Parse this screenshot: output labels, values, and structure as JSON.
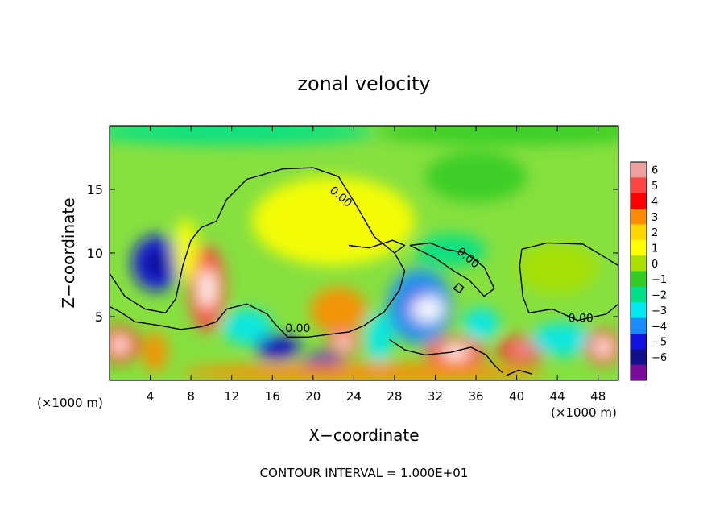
{
  "chart_data": {
    "type": "heatmap",
    "title": "zonal velocity",
    "xlabel": "X−coordinate",
    "ylabel": "Z−coordinate",
    "x_unit_left": "(×1000 m)",
    "x_unit_right": "(×1000 m)",
    "footer": "CONTOUR INTERVAL = 1.000E+01",
    "xlim": [
      0,
      50
    ],
    "ylim": [
      0,
      20
    ],
    "x_ticks": [
      4,
      8,
      12,
      16,
      20,
      24,
      28,
      32,
      36,
      40,
      44,
      48
    ],
    "y_ticks": [
      5,
      10,
      15
    ],
    "contour_labels": [
      {
        "text": "0.00",
        "x": 22.5,
        "z": 14.2
      },
      {
        "text": "0.00",
        "x": 35.0,
        "z": 9.4
      },
      {
        "text": "0.00",
        "x": 46.3,
        "z": 4.6
      },
      {
        "text": "0.00",
        "x": 18.5,
        "z": 3.8
      }
    ],
    "colorbar": {
      "ticks": [
        "6",
        "5",
        "4",
        "3",
        "2",
        "1",
        "0",
        "−1",
        "−2",
        "−3",
        "−4",
        "−5",
        "−6"
      ],
      "colors": [
        "#f0a0a0",
        "#ff4444",
        "#ff0000",
        "#ff8c00",
        "#ffd700",
        "#ffff00",
        "#a8e000",
        "#33cc22",
        "#00e088",
        "#00e8f0",
        "#1a8cff",
        "#1010e0",
        "#10108a",
        "#7a0a9a"
      ]
    },
    "field_blobs": [
      {
        "x": 4.6,
        "z": 9.2,
        "rx": 2.4,
        "rz": 2.2,
        "v": -4.5
      },
      {
        "x": 9.6,
        "z": 7.2,
        "rx": 1.8,
        "rz": 3.4,
        "v": 5.2
      },
      {
        "x": 1.0,
        "z": 2.8,
        "rx": 2.0,
        "rz": 1.4,
        "v": 4.5
      },
      {
        "x": 4.5,
        "z": 2.2,
        "rx": 1.2,
        "rz": 1.6,
        "v": 3.2
      },
      {
        "x": 13.5,
        "z": 4.2,
        "rx": 2.5,
        "rz": 1.4,
        "v": -3.0
      },
      {
        "x": 16.5,
        "z": 2.6,
        "rx": 2.2,
        "rz": 1.0,
        "v": -4.6
      },
      {
        "x": 22.5,
        "z": 5.5,
        "rx": 2.8,
        "rz": 1.8,
        "v": 3.5
      },
      {
        "x": 23.0,
        "z": 3.0,
        "rx": 1.6,
        "rz": 1.0,
        "v": 5.5
      },
      {
        "x": 21.0,
        "z": 1.3,
        "rx": 2.0,
        "rz": 0.9,
        "v": -5.0
      },
      {
        "x": 26.5,
        "z": 3.4,
        "rx": 1.4,
        "rz": 2.0,
        "v": -3.0
      },
      {
        "x": 30.5,
        "z": 5.8,
        "rx": 3.2,
        "rz": 3.0,
        "v": -4.0
      },
      {
        "x": 31.2,
        "z": 5.6,
        "rx": 1.7,
        "rz": 1.1,
        "v": 6.0
      },
      {
        "x": 34.0,
        "z": 2.2,
        "rx": 3.0,
        "rz": 1.2,
        "v": 4.8
      },
      {
        "x": 36.5,
        "z": 4.4,
        "rx": 1.8,
        "rz": 1.3,
        "v": -2.8
      },
      {
        "x": 40.5,
        "z": 2.4,
        "rx": 2.4,
        "rz": 1.1,
        "v": 4.2
      },
      {
        "x": 44.5,
        "z": 3.2,
        "rx": 3.2,
        "rz": 1.3,
        "v": -3.4
      },
      {
        "x": 48.5,
        "z": 2.6,
        "rx": 1.8,
        "rz": 1.4,
        "v": 5.0
      },
      {
        "x": 25.0,
        "z": 0.6,
        "rx": 18.0,
        "rz": 0.8,
        "v": 3.5
      },
      {
        "x": 33.5,
        "z": 10.2,
        "rx": 3.5,
        "rz": 1.3,
        "v": -1.8
      },
      {
        "x": 44.0,
        "z": 8.8,
        "rx": 4.0,
        "rz": 2.0,
        "v": 0.4
      },
      {
        "x": 22.0,
        "z": 12.5,
        "rx": 8.0,
        "rz": 3.5,
        "v": 1.2
      },
      {
        "x": 36.0,
        "z": 16.0,
        "rx": 5.0,
        "rz": 2.0,
        "v": -1.2
      },
      {
        "x": 12.0,
        "z": 19.5,
        "rx": 14.0,
        "rz": 1.0,
        "v": -1.6
      },
      {
        "x": 40.0,
        "z": 19.5,
        "rx": 14.0,
        "rz": 1.0,
        "v": -1.4
      },
      {
        "x": 7.5,
        "z": 10.2,
        "rx": 1.2,
        "rz": 2.5,
        "v": 1.5
      }
    ],
    "zero_contours": [
      [
        [
          0,
          8.4
        ],
        [
          1.5,
          6.6
        ],
        [
          3.5,
          5.6
        ],
        [
          5.5,
          5.3
        ],
        [
          6.5,
          6.4
        ],
        [
          7.2,
          9.0
        ],
        [
          8.0,
          11.0
        ],
        [
          9.0,
          12.0
        ],
        [
          10.5,
          12.5
        ],
        [
          11.5,
          14.2
        ],
        [
          13.5,
          15.8
        ],
        [
          17.0,
          16.6
        ],
        [
          20.0,
          16.7
        ],
        [
          22.5,
          16.0
        ],
        [
          24.5,
          13.4
        ],
        [
          26.0,
          11.3
        ],
        [
          28.0,
          10.0
        ],
        [
          29.0,
          8.6
        ],
        [
          28.5,
          7.1
        ],
        [
          27.0,
          5.4
        ],
        [
          25.0,
          4.3
        ],
        [
          23.5,
          3.8
        ],
        [
          21.5,
          3.6
        ],
        [
          19.5,
          3.4
        ],
        [
          17.5,
          3.4
        ],
        [
          16.3,
          4.4
        ],
        [
          15.5,
          5.2
        ],
        [
          13.5,
          6.0
        ],
        [
          11.5,
          5.6
        ],
        [
          10.5,
          4.6
        ],
        [
          9.0,
          4.2
        ],
        [
          7.0,
          4.0
        ],
        [
          5.0,
          4.3
        ],
        [
          2.5,
          4.6
        ],
        [
          1.0,
          5.4
        ],
        [
          0,
          5.8
        ]
      ],
      [
        [
          23.5,
          10.6
        ],
        [
          25.5,
          10.4
        ],
        [
          27.8,
          11.0
        ],
        [
          29.0,
          10.6
        ],
        [
          28.0,
          10.0
        ]
      ],
      [
        [
          29.5,
          10.6
        ],
        [
          31.5,
          10.8
        ],
        [
          33.0,
          10.3
        ],
        [
          35.0,
          10.0
        ],
        [
          36.8,
          8.9
        ],
        [
          37.8,
          7.2
        ],
        [
          36.8,
          6.6
        ],
        [
          35.3,
          7.9
        ],
        [
          33.8,
          8.6
        ],
        [
          32.0,
          9.6
        ],
        [
          30.5,
          10.2
        ],
        [
          29.5,
          10.6
        ]
      ],
      [
        [
          33.8,
          7.2
        ],
        [
          34.3,
          7.6
        ],
        [
          34.8,
          7.3
        ],
        [
          34.4,
          6.9
        ],
        [
          33.8,
          7.2
        ]
      ],
      [
        [
          40.5,
          10.3
        ],
        [
          43.0,
          10.8
        ],
        [
          46.5,
          10.7
        ],
        [
          48.8,
          9.6
        ],
        [
          50,
          9.0
        ],
        [
          50,
          6.0
        ],
        [
          48.8,
          5.2
        ],
        [
          46.0,
          4.7
        ],
        [
          43.5,
          5.6
        ],
        [
          41.2,
          5.3
        ],
        [
          40.6,
          6.6
        ],
        [
          40.3,
          9.0
        ],
        [
          40.5,
          10.3
        ]
      ],
      [
        [
          27.5,
          3.2
        ],
        [
          29.0,
          2.4
        ],
        [
          31.0,
          2.0
        ],
        [
          33.5,
          2.2
        ],
        [
          35.5,
          2.6
        ],
        [
          37.0,
          2.0
        ],
        [
          37.8,
          1.2
        ],
        [
          38.6,
          0.6
        ]
      ],
      [
        [
          39.0,
          0.4
        ],
        [
          40.2,
          0.8
        ],
        [
          41.5,
          0.5
        ]
      ]
    ]
  }
}
